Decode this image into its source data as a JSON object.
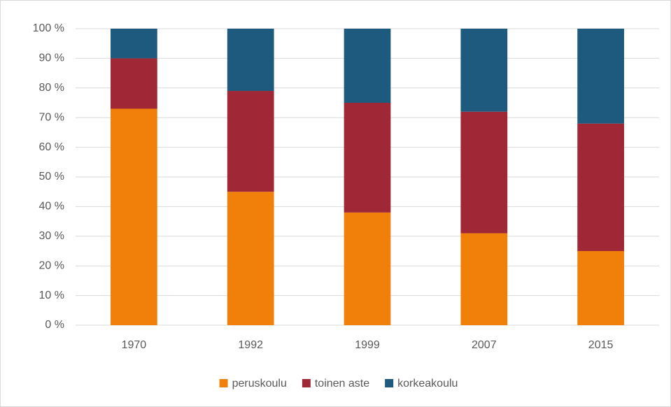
{
  "chart_data": {
    "type": "stacked_bar",
    "categories": [
      "1970",
      "1992",
      "1999",
      "2007",
      "2015"
    ],
    "series": [
      {
        "name": "peruskoulu",
        "color": "#f0800a",
        "values": [
          73,
          45,
          38,
          31,
          25
        ]
      },
      {
        "name": "toinen aste",
        "color": "#a02735",
        "values": [
          17,
          34,
          37,
          41,
          43
        ]
      },
      {
        "name": "korkeakoulu",
        "color": "#1d5a7e",
        "values": [
          10,
          21,
          25,
          28,
          32
        ]
      }
    ],
    "ylim": [
      0,
      100
    ],
    "yticks": [
      {
        "value": 0,
        "label": "0 %"
      },
      {
        "value": 10,
        "label": "10 %"
      },
      {
        "value": 20,
        "label": "20 %"
      },
      {
        "value": 30,
        "label": "30 %"
      },
      {
        "value": 40,
        "label": "40 %"
      },
      {
        "value": 50,
        "label": "50 %"
      },
      {
        "value": 60,
        "label": "60 %"
      },
      {
        "value": 70,
        "label": "70 %"
      },
      {
        "value": 80,
        "label": "80 %"
      },
      {
        "value": 90,
        "label": "90 %"
      },
      {
        "value": 100,
        "label": "100 %"
      }
    ],
    "grid": true,
    "legend": "bottom"
  }
}
